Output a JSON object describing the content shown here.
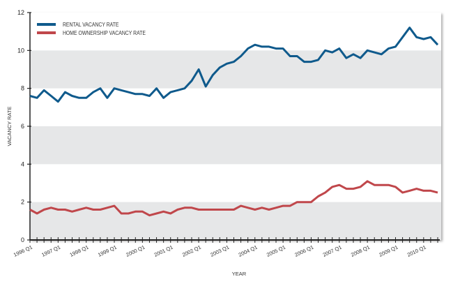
{
  "chart_data": {
    "type": "line",
    "title": "",
    "xlabel": "YEAR",
    "ylabel": "VACANCY RATE",
    "ylim": [
      0,
      12
    ],
    "yticks": [
      0,
      2,
      4,
      6,
      8,
      10,
      12
    ],
    "x_start": "1996 Q1",
    "x_end": "2010 Q3",
    "xtick_labels": [
      "1996 Q1",
      "1997 Q1",
      "1998 Q1",
      "1999 Q1",
      "2000 Q1",
      "2001 Q1",
      "2002 Q1",
      "2003 Q1",
      "2004 Q1",
      "2005 Q1",
      "2006 Q1",
      "2007 Q1",
      "2008 Q1",
      "2009 Q1",
      "2010 Q1"
    ],
    "grid": "alternating horizontal bands",
    "legend_position": "top-left",
    "series": [
      {
        "name": "RENTAL VACANCY RATE",
        "color": "#0f5a8c",
        "values": [
          7.6,
          7.5,
          7.9,
          7.6,
          7.3,
          7.8,
          7.6,
          7.5,
          7.5,
          7.8,
          8.0,
          7.5,
          8.0,
          7.9,
          7.8,
          7.7,
          7.7,
          7.6,
          8.0,
          7.5,
          7.8,
          7.9,
          8.0,
          8.4,
          9.0,
          8.1,
          8.7,
          9.1,
          9.3,
          9.4,
          9.7,
          10.1,
          10.3,
          10.2,
          10.2,
          10.1,
          10.1,
          9.7,
          9.7,
          9.4,
          9.4,
          9.5,
          10.0,
          9.9,
          10.1,
          9.6,
          9.8,
          9.6,
          10.0,
          9.9,
          9.8,
          10.1,
          10.2,
          10.7,
          11.2,
          10.7,
          10.6,
          10.7,
          10.3
        ]
      },
      {
        "name": "HOME OWNERSHIP VACANCY RATE",
        "color": "#c0474b",
        "values": [
          1.6,
          1.4,
          1.6,
          1.7,
          1.6,
          1.6,
          1.5,
          1.6,
          1.7,
          1.6,
          1.6,
          1.7,
          1.8,
          1.4,
          1.4,
          1.5,
          1.5,
          1.3,
          1.4,
          1.5,
          1.4,
          1.6,
          1.7,
          1.7,
          1.6,
          1.6,
          1.6,
          1.6,
          1.6,
          1.6,
          1.8,
          1.7,
          1.6,
          1.7,
          1.6,
          1.7,
          1.8,
          1.8,
          2.0,
          2.0,
          2.0,
          2.3,
          2.5,
          2.8,
          2.9,
          2.7,
          2.7,
          2.8,
          3.1,
          2.9,
          2.9,
          2.9,
          2.8,
          2.5,
          2.6,
          2.7,
          2.6,
          2.6,
          2.5
        ]
      }
    ],
    "band_color": "#e6e7e8"
  }
}
